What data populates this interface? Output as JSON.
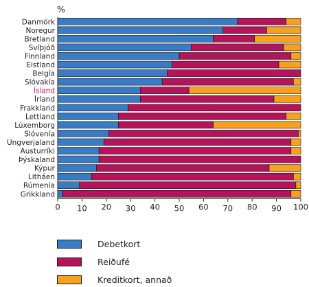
{
  "chart_data": {
    "type": "bar",
    "orientation": "horizontal",
    "stacked": true,
    "ylabel_unit": "%",
    "categories": [
      "Danmörk",
      "Noregur",
      "Bretland",
      "Svíþjóð",
      "Finnland",
      "Eistland",
      "Belgía",
      "Slóvakía",
      "Ísland",
      "Írland",
      "Frakkland",
      "Lettland",
      "Lúxemborg",
      "Slóvenía",
      "Ungverjaland",
      "Austurríki",
      "Þýskaland",
      "Kýpur",
      "Litháen",
      "Rúmenía",
      "Grikkland"
    ],
    "highlight_category": "Ísland",
    "highlight_color": "#c8195f",
    "series": [
      {
        "name": "Debetkort",
        "color": "#3a7cc4",
        "values": [
          74,
          68,
          64,
          55,
          50,
          47,
          45,
          43,
          34,
          34,
          29,
          25,
          25,
          21,
          19,
          17,
          17,
          16,
          14,
          9,
          2
        ]
      },
      {
        "name": "Reiðufé",
        "color": "#b5145a",
        "values": [
          20,
          18,
          17,
          38,
          46,
          44,
          55,
          54,
          20,
          55,
          71,
          69,
          39,
          78,
          77,
          79,
          83,
          71,
          83,
          89,
          94
        ]
      },
      {
        "name": "Kreditkort, annað",
        "color": "#f7a11e",
        "values": [
          6,
          14,
          19,
          7,
          4,
          9,
          0,
          3,
          46,
          11,
          0,
          6,
          36,
          1,
          4,
          4,
          0,
          13,
          3,
          2,
          4
        ]
      }
    ],
    "x_ticks": [
      "0",
      "10",
      "20",
      "30",
      "40",
      "50",
      "60",
      "70",
      "80",
      "90",
      "100"
    ],
    "xlim": [
      0,
      100
    ],
    "grid": false,
    "legend_position": "bottom"
  }
}
